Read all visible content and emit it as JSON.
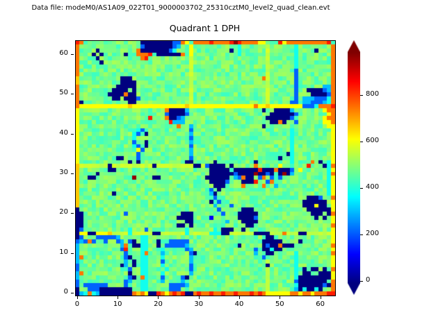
{
  "header": {
    "text": "Data file: modeM0/AS1A09_022T01_9000003702_25310cztM0_level2_quad_clean.evt"
  },
  "plot": {
    "title": "Quadrant 1 DPH"
  },
  "colors": {
    "background": "#ffffff",
    "spine": "#000000",
    "tick": "#000000"
  },
  "chart_data": {
    "type": "heatmap",
    "title": "Quadrant 1 DPH",
    "xlabel": "",
    "ylabel": "",
    "x_range": [
      0,
      63
    ],
    "y_range": [
      0,
      63
    ],
    "x_ticks": [
      0,
      10,
      20,
      30,
      40,
      50,
      60
    ],
    "y_ticks": [
      0,
      10,
      20,
      30,
      40,
      50,
      60
    ],
    "colormap": "jet",
    "vmin": -10,
    "vmax": 985,
    "colorbar": {
      "ticks": [
        0,
        200,
        400,
        600,
        800
      ],
      "extend": "both",
      "position": "right"
    },
    "palette": {
      "n": -10,
      "B": 110,
      "b": 210,
      "C": 300,
      "c": 380,
      "g": 475,
      "d": 555,
      "y": 610,
      "Y": 665,
      "o": 745,
      "r": 835,
      "R": 965
    },
    "jitter": {
      "g": 55,
      "d": 20
    },
    "grid_note": "rows listed top (y=63) to bottom (y=0); tokens are palette char + run length",
    "grid_rle": [
      "r o g14 n8 b2 o y g o4 r o4 r R r o4 y2 g3 r y o10 r",
      "o g15 b n7 b C g2 y g11 c g6 d g6 c g8 o",
      "o g4 n g9 o n7 b c g3 y g9 n g c g6 d g6 c g4 n g3 o",
      "o g3 n g n g5 n g2 o3 r g n6 o g y g11 c g6 d g6 c g8 o",
      "o g4 n g10 o r g10 d g18 d g6 c g8 o",
      "o g5 n g21 d g18 d g6 c g8 o",
      "o g27 d g18 d g6 c g8 o",
      "o g27 d g18 d g6 b g8 o",
      "o g27 d g18 d g6 b g8 o",
      "Y g10 n3 g14 d g17 o d g6 b g8 o",
      "Y g10 n4 g13 d g18 d g6 b g8 o",
      "o g9 n5 g13 d g18 d g6 b g6 C2 o",
      "o g8 n4 g n g13 d g18 d g6 b g2 n4 b C o",
      "o g7 n4 o n2 g13 d g18 d g6 b g3 n4 b o",
      "o g8 n2 g n3 b g12 d g18 d g6 b g C3 b3 c o",
      "o n g11 n2 g13 d g18 d g5 b2 g C2 b3 C c o",
      "o y12 Y y13 Y y16 o y2 Y y8 b3 c o3 r",
      "y g21 o n4 C g18 n g2 n4 C g7 y o2",
      "y g21 b n4 b g20 n6 b g7 y o",
      "y g17 r g3 o n2 b C g20 n6 b g7 y o2",
      "y g22 r C3 g21 n2 o n g2 b g6 y2 o",
      "y g24 o g2 C g17 n g15 y2",
      "y g14 c b g11 b g24 c g9 y",
      "y g13 c b g n g10 C g24 c g9 y",
      "y g13 c g13 b g24 c g9 y",
      "y g13 b g2 n g10 C g24 c g9 y",
      "y g13 c b g n g10 b g24 c g9 y",
      "y g14 y b g11 C g24 c g9 y",
      "y g14 b g12 C g23 n c g9 y",
      "y g9 n2 g3 b g12 b g21 n g2 c g9 y",
      "y g12 n g n g11 n2 g5 n g9 n g8 c g4 o g n g c y",
      "Y d7 n d10 n d9 n2 d b n4 g n g5 o g5 y g6 r g3 n c o",
      "Y g7 n2 g23 n5 g n6 r n3 o n3 b g y g6 c y",
      "Y g4 n g27 n6 b n4 R n2 b n g n R n C g8 c o",
      "Y g2 n2 g9 R g4 n2 g11 n6 g C b o n2 g b o g b g b g11 c y",
      "Y g32 n4 b g3 n3 r g2 b o g13 c y",
      "Y g33 n3 g4 o g4 o g2 C g12 c y",
      "Y g32 b g n g26 c y",
      "Y g8 n g23 C n g27 c y",
      "Y g33 b g22 n3 b g2 o",
      "Y g32 n g b g20 n6 g y",
      "Y g33 C g3 b g17 n3 y n2 g y",
      "n g34 b g5 n3 g13 n6 y",
      "n2 g10 b g13 n3 g7 b g3 n5 g13 n3 g n o",
      "n2 g23 n4 g4 B g6 n4 b g14 n g n g y",
      "n2 g25 n2 g8 C g3 n4 g18 y",
      "n2 g23 n2 g n g13 n2 g19 o",
      "n b g11 c g3 b g9 c g6 c g n3 g2 n g21 y",
      "n y2 n2 y3 Y d4 c d5 n2 d6 c d5 c3 n2 d6 n4 d3 o d3 n2 d6 y",
      "n b g3 b5 C g5 c2 g29 n2 g14 y",
      "b C b o b g2 b g2 b C g b n g c2 g2 n g2 b5 g18 n5 g4 n g7 y",
      "C g10 C o g n2 c2 g2 n g b5 C g12 n g5 n b n2 o n3 g9 o",
      "C g10 b r g3 c2 g3 c g5 b C g15 b g n2 c n2 g12 y",
      "C g11 b g3 c o g3 C g6 b n g14 C g2 n2 g5 c g8 o",
      "C o g10 b n g2 c2 g3 c g6 C g17 b g7 c g8 y",
      "C g11 C g n g c2 g3 b g6 C g18 d g6 c g8 y",
      "b g10 n C g n g c2 g3 c g6 b g18 n g6 c g8 y",
      "b g12 b g2 c2 g4 c g5 b g18 d g6 c g n g n2 g n g o",
      "C o g11 n g2 c2 g3 c g6 C g18 d g6 c g n2 g2 n3 y",
      "C g12 b n g o c g3 b g4 b n g19 d g6 c n8 y",
      "b g11 b C g2 c2 g3 C g4 C g20 d g6 b n7 g o",
      "b g b6 g4 b g3 c2 g5 b4 C g19 d g6 c n6 b n o",
      "n g2 b3 n8 g2 c2 g5 b3 g21 d g6 C n c n2 c n g2 o",
      "n C c o c C n8 o Y o y n2 r o y o r o r n2 o r o2 r o2 r o2 r o3 r o r o y6 o2 y o2 y o3 r2"
    ]
  }
}
